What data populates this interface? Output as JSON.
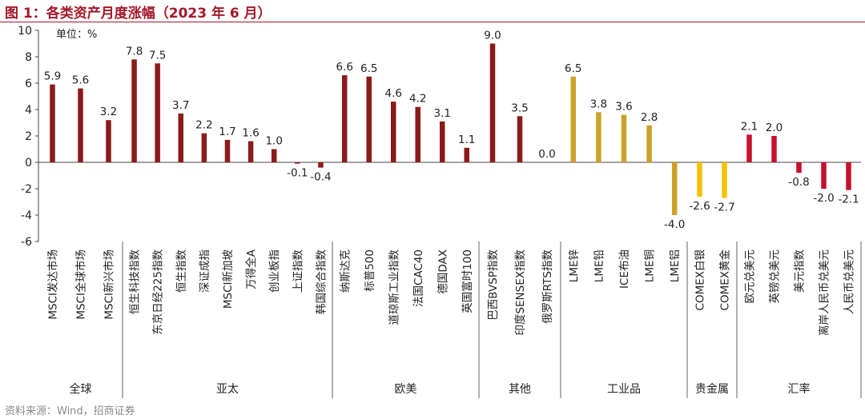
{
  "figure_title": "图 1：各类资产月度涨幅（2023 年 6 月）",
  "source": "资料来源：Wind，招商证券",
  "chart_data": {
    "type": "bar",
    "unit_label": "单位：%",
    "ylim": [
      -6,
      10
    ],
    "yticks": [
      -6,
      -4,
      -2,
      0,
      2,
      4,
      6,
      8,
      10
    ],
    "grid": false,
    "categories": [
      "MSCI发达市场",
      "MSCI全球市场",
      "MSCI新兴市场",
      "恒生科技指数",
      "东京日经225指数",
      "恒生指数",
      "深证成指",
      "MSCI新加坡",
      "万得全A",
      "创业板指",
      "上证指数",
      "韩国综合指数",
      "纳斯达克",
      "标普500",
      "道琼斯工业指数",
      "法国CAC40",
      "德国DAX",
      "英国富时100",
      "巴西BVSP指数",
      "印度SENSEX指数",
      "俄罗斯RTS指数",
      "LME锌",
      "LME铅",
      "ICE布油",
      "LME铜",
      "LME铝",
      "COMEX白银",
      "COMEX黄金",
      "欧元兑美元",
      "英镑兑美元",
      "美元指数",
      "离岸人民币兑美元",
      "人民币兑美元"
    ],
    "values": [
      5.9,
      5.6,
      3.2,
      7.8,
      7.5,
      3.7,
      2.2,
      1.7,
      1.6,
      1.0,
      -0.1,
      -0.4,
      6.6,
      6.5,
      4.6,
      4.2,
      3.1,
      1.1,
      9.0,
      3.5,
      0.0,
      6.5,
      3.8,
      3.6,
      2.8,
      -4.0,
      -2.6,
      -2.7,
      2.1,
      2.0,
      -0.8,
      -2.0,
      -2.1
    ],
    "data_labels": [
      "5.9",
      "5.6",
      "3.2",
      "7.8",
      "7.5",
      "3.7",
      "2.2",
      "1.7",
      "1.6",
      "1.0",
      "-0.1",
      "-0.4",
      "6.6",
      "6.5",
      "4.6",
      "4.2",
      "3.1",
      "1.1",
      "9.0",
      "3.5",
      "0.0",
      "6.5",
      "3.8",
      "3.6",
      "2.8",
      "-4.0",
      "-2.6",
      "-2.7",
      "2.1",
      "2.0",
      "-0.8",
      "-2.0",
      "-2.1"
    ],
    "groups": [
      {
        "name": "全球",
        "count": 3,
        "color": "#8b1a1a"
      },
      {
        "name": "亚太",
        "count": 9,
        "color": "#8b1a1a"
      },
      {
        "name": "欧美",
        "count": 6,
        "color": "#8b1a1a"
      },
      {
        "name": "其他",
        "count": 3,
        "color": "#8b1a1a"
      },
      {
        "name": "工业品",
        "count": 5,
        "color": "#c9a227"
      },
      {
        "name": "贵金属",
        "count": 2,
        "color": "#f2c200"
      },
      {
        "name": "汇率",
        "count": 5,
        "color": "#c8102e"
      }
    ]
  }
}
